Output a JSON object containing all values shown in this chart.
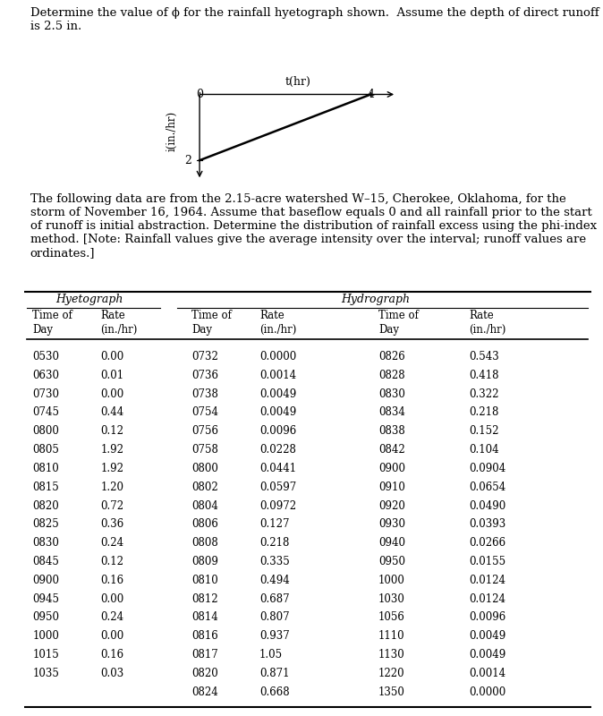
{
  "title_problem1": "Determine the value of ϕ for the rainfall hyetograph shown.  Assume the depth of direct runoff\nis 2.5 in.",
  "paragraph": "The following data are from the 2.15-acre watershed W–15, Cherokee, Oklahoma, for the\nstorm of November 16, 1964. Assume that baseflow equals 0 and all rainfall prior to the start\nof runoff is initial abstraction. Determine the distribution of rainfall excess using the phi-index\nmethod. [Note: Rainfall values give the average intensity over the interval; runoff values are\nordinates.]",
  "hyetograph_header": "Hyetograph",
  "hydrograph_header": "Hydrograph",
  "hyetograph_data": [
    [
      "0530",
      "0.00"
    ],
    [
      "0630",
      "0.01"
    ],
    [
      "0730",
      "0.00"
    ],
    [
      "0745",
      "0.44"
    ],
    [
      "0800",
      "0.12"
    ],
    [
      "0805",
      "1.92"
    ],
    [
      "0810",
      "1.92"
    ],
    [
      "0815",
      "1.20"
    ],
    [
      "0820",
      "0.72"
    ],
    [
      "0825",
      "0.36"
    ],
    [
      "0830",
      "0.24"
    ],
    [
      "0845",
      "0.12"
    ],
    [
      "0900",
      "0.16"
    ],
    [
      "0945",
      "0.00"
    ],
    [
      "0950",
      "0.24"
    ],
    [
      "1000",
      "0.00"
    ],
    [
      "1015",
      "0.16"
    ],
    [
      "1035",
      "0.03"
    ]
  ],
  "hydrograph_col1": [
    [
      "0732",
      "0.0000"
    ],
    [
      "0736",
      "0.0014"
    ],
    [
      "0738",
      "0.0049"
    ],
    [
      "0754",
      "0.0049"
    ],
    [
      "0756",
      "0.0096"
    ],
    [
      "0758",
      "0.0228"
    ],
    [
      "0800",
      "0.0441"
    ],
    [
      "0802",
      "0.0597"
    ],
    [
      "0804",
      "0.0972"
    ],
    [
      "0806",
      "0.127"
    ],
    [
      "0808",
      "0.218"
    ],
    [
      "0809",
      "0.335"
    ],
    [
      "0810",
      "0.494"
    ],
    [
      "0812",
      "0.687"
    ],
    [
      "0814",
      "0.807"
    ],
    [
      "0816",
      "0.937"
    ],
    [
      "0817",
      "1.05"
    ],
    [
      "0820",
      "0.871"
    ],
    [
      "0824",
      "0.668"
    ]
  ],
  "hydrograph_col2": [
    [
      "0826",
      "0.543"
    ],
    [
      "0828",
      "0.418"
    ],
    [
      "0830",
      "0.322"
    ],
    [
      "0834",
      "0.218"
    ],
    [
      "0838",
      "0.152"
    ],
    [
      "0842",
      "0.104"
    ],
    [
      "0900",
      "0.0904"
    ],
    [
      "0910",
      "0.0654"
    ],
    [
      "0920",
      "0.0490"
    ],
    [
      "0930",
      "0.0393"
    ],
    [
      "0940",
      "0.0266"
    ],
    [
      "0950",
      "0.0155"
    ],
    [
      "1000",
      "0.0124"
    ],
    [
      "1030",
      "0.0124"
    ],
    [
      "1056",
      "0.0096"
    ],
    [
      "1110",
      "0.0049"
    ],
    [
      "1130",
      "0.0049"
    ],
    [
      "1220",
      "0.0014"
    ],
    [
      "1350",
      "0.0000"
    ]
  ],
  "ylabel_diagram": "i(in./hr)",
  "xlabel_diagram": "t(hr)",
  "background_color": "#ffffff",
  "text_color": "#000000",
  "font_size_body": 9.5,
  "font_size_table": 8.5
}
